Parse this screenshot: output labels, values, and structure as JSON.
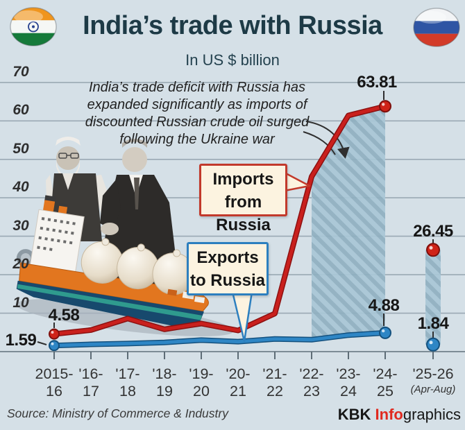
{
  "header": {
    "title": "India’s trade with Russia",
    "subtitle": "In US $ billion",
    "left_flag": "india-flag",
    "right_flag": "russia-flag"
  },
  "annotation": {
    "lines": [
      "India’s trade deficit with Russia has",
      "expanded significantly as imports of",
      "discounted Russian crude oil surged",
      "following the Ukraine war"
    ]
  },
  "callout_imports": {
    "line1": "Imports",
    "line2": "from Russia"
  },
  "callout_exports": {
    "line1": "Exports",
    "line2": "to Russia"
  },
  "chart_data": {
    "type": "line",
    "title": "India’s trade with Russia",
    "unit": "US $ billion",
    "categories": [
      "2015-16",
      "2016-17",
      "2017-18",
      "2018-19",
      "2019-20",
      "2020-21",
      "2021-22",
      "2022-23",
      "2023-24",
      "2024-25",
      "2025-26 (Apr-Aug)"
    ],
    "x_tick_labels": [
      {
        "top": "2015-",
        "bottom": "16"
      },
      {
        "top": "'16-",
        "bottom": "17"
      },
      {
        "top": "'17-",
        "bottom": "18"
      },
      {
        "top": "'18-",
        "bottom": "19"
      },
      {
        "top": "'19-",
        "bottom": "20"
      },
      {
        "top": "'20-",
        "bottom": "21"
      },
      {
        "top": "'21-",
        "bottom": "22"
      },
      {
        "top": "'22-",
        "bottom": "23"
      },
      {
        "top": "'23-",
        "bottom": "24"
      },
      {
        "top": "'24-",
        "bottom": "25"
      },
      {
        "top": "'25-26",
        "bottom": "(Apr-Aug)"
      }
    ],
    "yticks": [
      "70",
      "60",
      "50",
      "40",
      "30",
      "20",
      "10"
    ],
    "ylim": [
      0,
      70
    ],
    "grid": true,
    "series": [
      {
        "name": "Imports from Russia",
        "color": "#c9201d",
        "values": [
          4.58,
          5.6,
          8.6,
          5.8,
          7.3,
          5.5,
          9.9,
          45.5,
          61.4,
          63.81,
          26.45
        ]
      },
      {
        "name": "Exports to Russia",
        "color": "#2e86c5",
        "values": [
          1.59,
          1.9,
          2.1,
          2.4,
          3.0,
          2.6,
          3.3,
          3.1,
          4.3,
          4.88,
          1.84
        ]
      }
    ],
    "point_labels": {
      "imports_2015_16": "4.58",
      "exports_2015_16": "1.59",
      "imports_2024_25": "63.81",
      "exports_2024_25": "4.88",
      "imports_2025_26": "26.45",
      "exports_2025_26": "1.84"
    },
    "deficit_band": {
      "from": "2022-23",
      "to": "2024-25"
    }
  },
  "footer": {
    "source": "Source: Ministry of Commerce & Industry",
    "credit": {
      "kbk": "KBK ",
      "info": "Info",
      "graphics": "graphics"
    }
  }
}
